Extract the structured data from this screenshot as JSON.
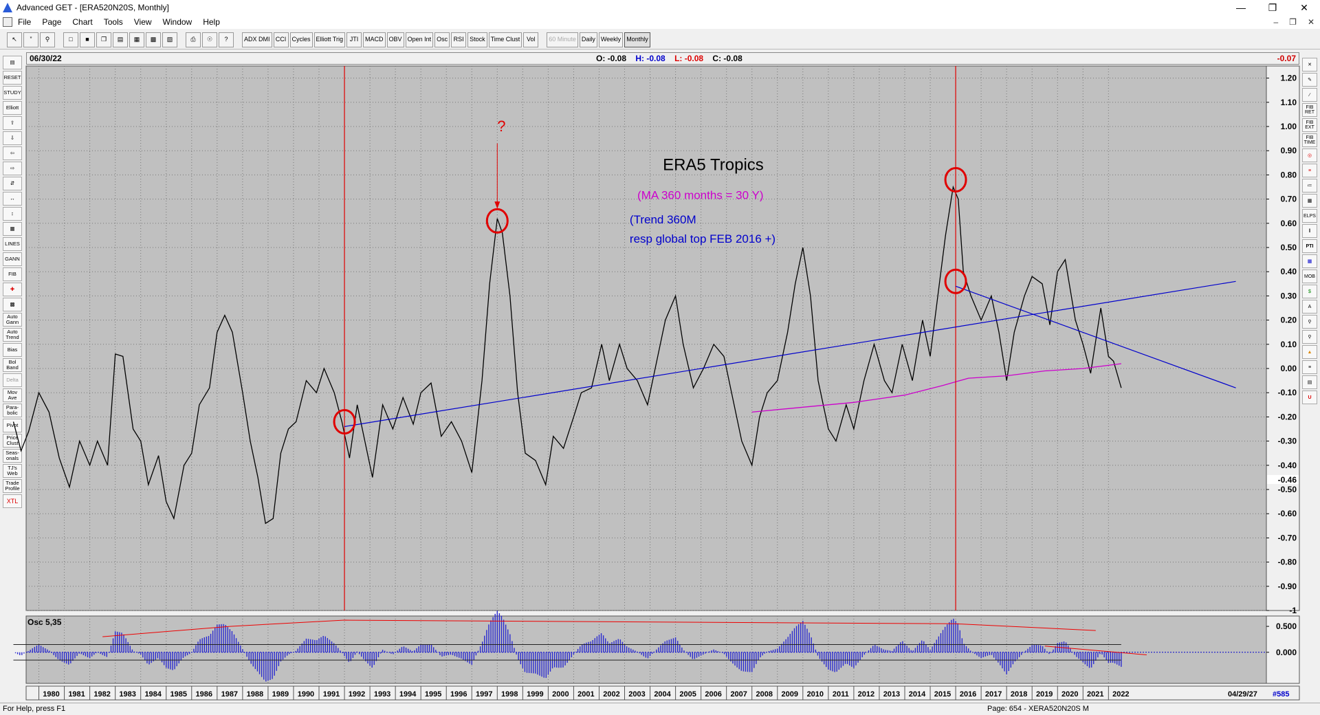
{
  "window": {
    "title": "Advanced GET - [ERA520N20S, Monthly]"
  },
  "menu": [
    "File",
    "Page",
    "Chart",
    "Tools",
    "View",
    "Window",
    "Help"
  ],
  "toolbar": {
    "indicators": [
      "ADX DMI",
      "CCI",
      "Cycles",
      "Elliott Trig",
      "JTI",
      "MACD",
      "OBV",
      "Open Int",
      "Osc",
      "RSI",
      "Stock",
      "Time Clust",
      "Vol"
    ],
    "timeframes": [
      "60 Minute",
      "Daily",
      "Weekly",
      "Monthly"
    ],
    "active_timeframe": "Monthly"
  },
  "left_tools": [
    "RESET",
    "STUDY",
    "Elliott",
    "LINES",
    "GANN",
    "FIB",
    "Auto Gann",
    "Auto Trend",
    "Bias",
    "Bol Band",
    "Delta",
    "Mov Ave",
    "Para-bolic",
    "Pivot",
    "Price Clust",
    "Seas-onals",
    "TJ's Web",
    "Trade Profile",
    "XTL"
  ],
  "right_tools": [
    "FIB RET",
    "FIB EXT",
    "FIB TIME",
    "ELPS",
    "PTI",
    "MOB"
  ],
  "header": {
    "date": "06/30/22",
    "open": "O: -0.08",
    "high": "H: -0.08",
    "low": "L: -0.08",
    "close": "C: -0.08",
    "last_value": "-0.07"
  },
  "status": {
    "help": "For Help, press F1",
    "page": "Page: 654 - XERA520N20S M"
  },
  "colors": {
    "price": "#000000",
    "trend": "#0000cc",
    "ma": "#cc00cc",
    "marker": "#e00000",
    "osc_bar": "#2a2ad0",
    "panel_bg": "#c0c0c0"
  },
  "chart_data": {
    "type": "line",
    "ylim": [
      -1.0,
      1.25
    ],
    "y_ticks": [
      "1.20",
      "1.10",
      "1.00",
      "0.90",
      "0.80",
      "0.70",
      "0.60",
      "0.50",
      "0.40",
      "0.30",
      "0.20",
      "0.10",
      "0.00",
      "-0.10",
      "-0.20",
      "-0.30",
      "-0.40",
      "-0.50",
      "-0.60",
      "-0.70",
      "-0.80",
      "-0.90",
      "-1"
    ],
    "current_value_label": "-0.46",
    "x_ticks": [
      "1980",
      "1981",
      "1982",
      "1983",
      "1984",
      "1985",
      "1986",
      "1987",
      "1988",
      "1989",
      "1990",
      "1991",
      "1992",
      "1993",
      "1994",
      "1995",
      "1996",
      "1997",
      "1998",
      "1999",
      "2000",
      "2001",
      "2002",
      "2003",
      "2004",
      "2005",
      "2006",
      "2007",
      "2008",
      "2009",
      "2010",
      "2011",
      "2012",
      "2013",
      "2014",
      "2015",
      "2016",
      "2017",
      "2018",
      "2019",
      "2020",
      "2021",
      "2022"
    ],
    "x_end_label": "04/29/27",
    "x_end_count": "#585",
    "series": [
      {
        "values_xy": [
          [
            1979.0,
            -0.22
          ],
          [
            1979.3,
            -0.34
          ],
          [
            1979.6,
            -0.26
          ],
          [
            1980.0,
            -0.1
          ],
          [
            1980.4,
            -0.18
          ],
          [
            1980.8,
            -0.37
          ],
          [
            1981.2,
            -0.49
          ],
          [
            1981.6,
            -0.3
          ],
          [
            1982.0,
            -0.4
          ],
          [
            1982.3,
            -0.3
          ],
          [
            1982.7,
            -0.4
          ],
          [
            1983.0,
            0.06
          ],
          [
            1983.3,
            0.05
          ],
          [
            1983.7,
            -0.25
          ],
          [
            1984.0,
            -0.3
          ],
          [
            1984.3,
            -0.48
          ],
          [
            1984.7,
            -0.36
          ],
          [
            1985.0,
            -0.55
          ],
          [
            1985.3,
            -0.62
          ],
          [
            1985.7,
            -0.4
          ],
          [
            1986.0,
            -0.35
          ],
          [
            1986.3,
            -0.15
          ],
          [
            1986.7,
            -0.08
          ],
          [
            1987.0,
            0.15
          ],
          [
            1987.3,
            0.22
          ],
          [
            1987.6,
            0.15
          ],
          [
            1988.0,
            -0.1
          ],
          [
            1988.3,
            -0.3
          ],
          [
            1988.6,
            -0.45
          ],
          [
            1988.9,
            -0.64
          ],
          [
            1989.2,
            -0.62
          ],
          [
            1989.5,
            -0.35
          ],
          [
            1989.8,
            -0.25
          ],
          [
            1990.1,
            -0.22
          ],
          [
            1990.5,
            -0.05
          ],
          [
            1990.9,
            -0.1
          ],
          [
            1991.2,
            0.0
          ],
          [
            1991.6,
            -0.1
          ],
          [
            1991.9,
            -0.22
          ],
          [
            1992.2,
            -0.37
          ],
          [
            1992.5,
            -0.15
          ],
          [
            1992.8,
            -0.3
          ],
          [
            1993.1,
            -0.45
          ],
          [
            1993.5,
            -0.15
          ],
          [
            1993.9,
            -0.25
          ],
          [
            1994.3,
            -0.12
          ],
          [
            1994.7,
            -0.23
          ],
          [
            1995.0,
            -0.1
          ],
          [
            1995.4,
            -0.06
          ],
          [
            1995.8,
            -0.28
          ],
          [
            1996.2,
            -0.22
          ],
          [
            1996.6,
            -0.3
          ],
          [
            1997.0,
            -0.43
          ],
          [
            1997.4,
            -0.05
          ],
          [
            1997.7,
            0.35
          ],
          [
            1998.0,
            0.62
          ],
          [
            1998.2,
            0.56
          ],
          [
            1998.5,
            0.3
          ],
          [
            1998.8,
            -0.1
          ],
          [
            1999.1,
            -0.35
          ],
          [
            1999.5,
            -0.38
          ],
          [
            1999.9,
            -0.48
          ],
          [
            2000.2,
            -0.28
          ],
          [
            2000.6,
            -0.33
          ],
          [
            2001.0,
            -0.2
          ],
          [
            2001.3,
            -0.1
          ],
          [
            2001.7,
            -0.08
          ],
          [
            2002.1,
            0.1
          ],
          [
            2002.4,
            -0.05
          ],
          [
            2002.8,
            0.1
          ],
          [
            2003.1,
            0.0
          ],
          [
            2003.5,
            -0.05
          ],
          [
            2003.9,
            -0.15
          ],
          [
            2004.2,
            0.0
          ],
          [
            2004.6,
            0.2
          ],
          [
            2005.0,
            0.3
          ],
          [
            2005.3,
            0.1
          ],
          [
            2005.7,
            -0.08
          ],
          [
            2006.1,
            0.0
          ],
          [
            2006.5,
            0.1
          ],
          [
            2006.9,
            0.05
          ],
          [
            2007.2,
            -0.1
          ],
          [
            2007.6,
            -0.3
          ],
          [
            2008.0,
            -0.4
          ],
          [
            2008.3,
            -0.2
          ],
          [
            2008.6,
            -0.1
          ],
          [
            2009.0,
            -0.05
          ],
          [
            2009.4,
            0.15
          ],
          [
            2009.7,
            0.35
          ],
          [
            2010.0,
            0.5
          ],
          [
            2010.3,
            0.3
          ],
          [
            2010.6,
            -0.05
          ],
          [
            2011.0,
            -0.25
          ],
          [
            2011.3,
            -0.3
          ],
          [
            2011.7,
            -0.15
          ],
          [
            2012.0,
            -0.25
          ],
          [
            2012.4,
            -0.05
          ],
          [
            2012.8,
            0.1
          ],
          [
            2013.2,
            -0.05
          ],
          [
            2013.5,
            -0.1
          ],
          [
            2013.9,
            0.1
          ],
          [
            2014.3,
            -0.05
          ],
          [
            2014.7,
            0.2
          ],
          [
            2015.0,
            0.05
          ],
          [
            2015.3,
            0.3
          ],
          [
            2015.6,
            0.55
          ],
          [
            2015.9,
            0.75
          ],
          [
            2016.1,
            0.7
          ],
          [
            2016.3,
            0.4
          ],
          [
            2016.6,
            0.3
          ],
          [
            2017.0,
            0.2
          ],
          [
            2017.4,
            0.3
          ],
          [
            2017.7,
            0.15
          ],
          [
            2018.0,
            -0.05
          ],
          [
            2018.3,
            0.15
          ],
          [
            2018.7,
            0.3
          ],
          [
            2019.0,
            0.38
          ],
          [
            2019.4,
            0.35
          ],
          [
            2019.7,
            0.18
          ],
          [
            2020.0,
            0.4
          ],
          [
            2020.3,
            0.45
          ],
          [
            2020.7,
            0.2
          ],
          [
            2021.0,
            0.1
          ],
          [
            2021.3,
            -0.02
          ],
          [
            2021.7,
            0.25
          ],
          [
            2022.0,
            0.05
          ],
          [
            2022.2,
            0.03
          ],
          [
            2022.5,
            -0.08
          ]
        ],
        "color": "#000000"
      },
      {
        "values_xy": [
          [
            2008.0,
            -0.18
          ],
          [
            2010.0,
            -0.16
          ],
          [
            2012.0,
            -0.14
          ],
          [
            2014.0,
            -0.11
          ],
          [
            2015.5,
            -0.07
          ],
          [
            2016.5,
            -0.04
          ],
          [
            2018.0,
            -0.03
          ],
          [
            2019.5,
            -0.01
          ],
          [
            2021.0,
            0.0
          ],
          [
            2022.5,
            0.02
          ]
        ],
        "color": "#cc00cc"
      }
    ],
    "lines": [
      {
        "from": [
          1992.0,
          -0.24
        ],
        "to": [
          2027.0,
          0.36
        ],
        "color": "#0000cc"
      },
      {
        "from": [
          2016.0,
          0.34
        ],
        "to": [
          2027.0,
          -0.08
        ],
        "color": "#0000cc"
      }
    ],
    "vlines": [
      1992.0,
      2016.0
    ],
    "circles": [
      [
        1992.0,
        -0.22
      ],
      [
        1998.0,
        0.61
      ],
      [
        2016.0,
        0.78
      ],
      [
        2016.0,
        0.36
      ]
    ],
    "annotations": [
      {
        "text": "?",
        "x": 1998.0,
        "y": 0.98,
        "color": "#e00000"
      },
      {
        "text": "ERA5 Tropics",
        "x": 2004.5,
        "y": 0.82,
        "color": "#000000"
      },
      {
        "text": "(MA 360 months = 30 Y)",
        "x": 2003.5,
        "y": 0.7,
        "color": "#cc00cc"
      },
      {
        "text": "(Trend 360M",
        "x": 2003.2,
        "y": 0.6,
        "color": "#0000cc"
      },
      {
        "text": "resp global top FEB 2016 +)",
        "x": 2003.2,
        "y": 0.52,
        "color": "#0000cc"
      }
    ],
    "oscillator": {
      "label": "Osc 5,35",
      "y_ticks": [
        "0.500",
        "0.000"
      ],
      "ylim": [
        -0.6,
        0.7
      ]
    }
  }
}
